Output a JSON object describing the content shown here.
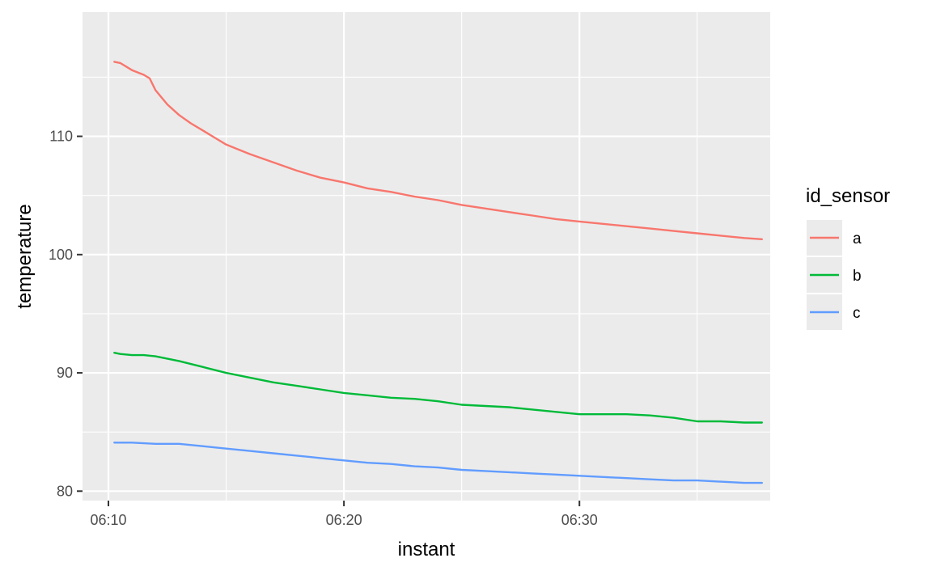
{
  "chart_data": {
    "type": "line",
    "xlabel": "instant",
    "ylabel": "temperature",
    "x_unit": "time (hh:mm)",
    "xlim": [
      "06:08:54",
      "06:38:06"
    ],
    "ylim": [
      79.2,
      120.5
    ],
    "x_ticks_major": [
      "06:10",
      "06:20",
      "06:30"
    ],
    "x_ticks_minor": [
      "06:15",
      "06:25",
      "06:35"
    ],
    "y_ticks_major": [
      80,
      90,
      100,
      110
    ],
    "y_ticks_minor": [
      85,
      95,
      105,
      115
    ],
    "grid": true,
    "legend": {
      "title": "id_sensor",
      "position": "right"
    },
    "series": [
      {
        "name": "a",
        "color": "#F8766D",
        "points": [
          [
            "06:10:15",
            116.3
          ],
          [
            "06:10:30",
            116.2
          ],
          [
            "06:11:00",
            115.6
          ],
          [
            "06:11:30",
            115.2
          ],
          [
            "06:11:45",
            114.9
          ],
          [
            "06:12:00",
            113.9
          ],
          [
            "06:12:30",
            112.7
          ],
          [
            "06:13:00",
            111.8
          ],
          [
            "06:13:30",
            111.1
          ],
          [
            "06:14:00",
            110.5
          ],
          [
            "06:14:30",
            109.9
          ],
          [
            "06:15:00",
            109.3
          ],
          [
            "06:15:30",
            108.9
          ],
          [
            "06:16:00",
            108.5
          ],
          [
            "06:17:00",
            107.8
          ],
          [
            "06:18:00",
            107.1
          ],
          [
            "06:19:00",
            106.5
          ],
          [
            "06:20:00",
            106.1
          ],
          [
            "06:21:00",
            105.6
          ],
          [
            "06:22:00",
            105.3
          ],
          [
            "06:23:00",
            104.9
          ],
          [
            "06:24:00",
            104.6
          ],
          [
            "06:25:00",
            104.2
          ],
          [
            "06:26:00",
            103.9
          ],
          [
            "06:27:00",
            103.6
          ],
          [
            "06:28:00",
            103.3
          ],
          [
            "06:29:00",
            103.0
          ],
          [
            "06:30:00",
            102.8
          ],
          [
            "06:31:00",
            102.6
          ],
          [
            "06:32:00",
            102.4
          ],
          [
            "06:33:00",
            102.2
          ],
          [
            "06:34:00",
            102.0
          ],
          [
            "06:35:00",
            101.8
          ],
          [
            "06:36:00",
            101.6
          ],
          [
            "06:37:00",
            101.4
          ],
          [
            "06:37:45",
            101.3
          ]
        ]
      },
      {
        "name": "b",
        "color": "#00BA38",
        "points": [
          [
            "06:10:15",
            91.7
          ],
          [
            "06:10:30",
            91.6
          ],
          [
            "06:11:00",
            91.5
          ],
          [
            "06:11:30",
            91.5
          ],
          [
            "06:12:00",
            91.4
          ],
          [
            "06:13:00",
            91.0
          ],
          [
            "06:14:00",
            90.5
          ],
          [
            "06:15:00",
            90.0
          ],
          [
            "06:16:00",
            89.6
          ],
          [
            "06:17:00",
            89.2
          ],
          [
            "06:18:00",
            88.9
          ],
          [
            "06:19:00",
            88.6
          ],
          [
            "06:20:00",
            88.3
          ],
          [
            "06:21:00",
            88.1
          ],
          [
            "06:22:00",
            87.9
          ],
          [
            "06:23:00",
            87.8
          ],
          [
            "06:24:00",
            87.6
          ],
          [
            "06:25:00",
            87.3
          ],
          [
            "06:26:00",
            87.2
          ],
          [
            "06:27:00",
            87.1
          ],
          [
            "06:28:00",
            86.9
          ],
          [
            "06:29:00",
            86.7
          ],
          [
            "06:30:00",
            86.5
          ],
          [
            "06:31:00",
            86.5
          ],
          [
            "06:32:00",
            86.5
          ],
          [
            "06:33:00",
            86.4
          ],
          [
            "06:34:00",
            86.2
          ],
          [
            "06:35:00",
            85.9
          ],
          [
            "06:36:00",
            85.9
          ],
          [
            "06:37:00",
            85.8
          ],
          [
            "06:37:45",
            85.8
          ]
        ]
      },
      {
        "name": "c",
        "color": "#619CFF",
        "points": [
          [
            "06:10:15",
            84.1
          ],
          [
            "06:11:00",
            84.1
          ],
          [
            "06:12:00",
            84.0
          ],
          [
            "06:13:00",
            84.0
          ],
          [
            "06:14:00",
            83.8
          ],
          [
            "06:15:00",
            83.6
          ],
          [
            "06:16:00",
            83.4
          ],
          [
            "06:17:00",
            83.2
          ],
          [
            "06:18:00",
            83.0
          ],
          [
            "06:19:00",
            82.8
          ],
          [
            "06:20:00",
            82.6
          ],
          [
            "06:21:00",
            82.4
          ],
          [
            "06:22:00",
            82.3
          ],
          [
            "06:23:00",
            82.1
          ],
          [
            "06:24:00",
            82.0
          ],
          [
            "06:25:00",
            81.8
          ],
          [
            "06:26:00",
            81.7
          ],
          [
            "06:27:00",
            81.6
          ],
          [
            "06:28:00",
            81.5
          ],
          [
            "06:29:00",
            81.4
          ],
          [
            "06:30:00",
            81.3
          ],
          [
            "06:31:00",
            81.2
          ],
          [
            "06:32:00",
            81.1
          ],
          [
            "06:33:00",
            81.0
          ],
          [
            "06:34:00",
            80.9
          ],
          [
            "06:35:00",
            80.9
          ],
          [
            "06:36:00",
            80.8
          ],
          [
            "06:37:00",
            80.7
          ],
          [
            "06:37:45",
            80.7
          ]
        ]
      }
    ]
  },
  "colors": {
    "panel_background": "#EBEBEB",
    "grid": "#FFFFFF",
    "tick": "#333333",
    "tick_label": "#4D4D4D"
  }
}
